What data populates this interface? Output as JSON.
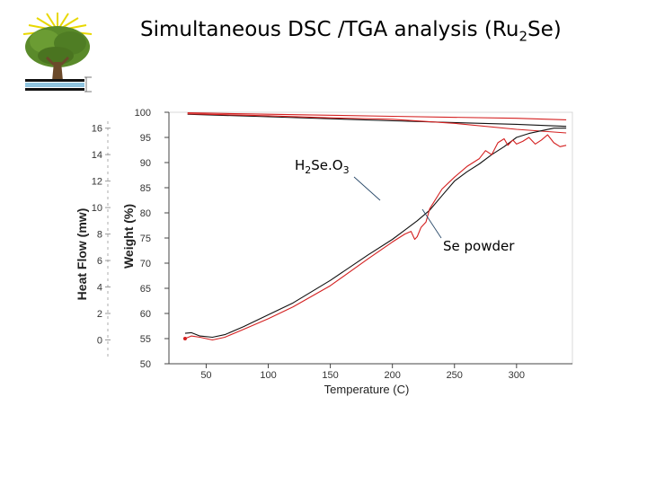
{
  "header": {
    "title_main": "Simultaneous DSC /TGA analysis (Ru",
    "title_sub": "2",
    "title_end": "Se)"
  },
  "logo": {
    "icon": "tree-logo-icon"
  },
  "colors": {
    "black_curve": "#111111",
    "red_curve": "#d42020",
    "axis": "#444444",
    "leader": "#2a4a6a"
  },
  "chart_data": {
    "type": "line",
    "title": "",
    "xlabel": "Temperature (C)",
    "ylabel_left": "Heat Flow (mw)",
    "ylabel_right": "Weight (%)",
    "xlim": [
      20,
      345
    ],
    "ylim_heatflow": [
      -1.8,
      17.2
    ],
    "ylim_weight": [
      50,
      100
    ],
    "x_ticks": [
      50,
      100,
      150,
      200,
      250,
      300
    ],
    "heatflow_ticks": [
      0,
      2,
      4,
      6,
      8,
      10,
      12,
      14,
      16
    ],
    "weight_ticks": [
      50,
      55,
      60,
      65,
      70,
      75,
      80,
      85,
      90,
      95,
      100
    ],
    "grid": false,
    "series": [
      {
        "axis": "weight",
        "color": "#111111",
        "x": [
          35,
          100,
          200,
          300,
          340
        ],
        "y": [
          99.6,
          99.1,
          98.3,
          97.6,
          97.2
        ]
      },
      {
        "axis": "weight",
        "color": "#d42020",
        "x": [
          35,
          100,
          150,
          200,
          250,
          300,
          340
        ],
        "y": [
          99.7,
          99.3,
          98.9,
          98.6,
          97.8,
          96.6,
          95.9
        ]
      },
      {
        "axis": "weight",
        "color": "#d42020",
        "x": [
          35,
          100,
          200,
          300,
          340
        ],
        "y": [
          99.9,
          99.6,
          99.2,
          98.8,
          98.5
        ]
      },
      {
        "axis": "heatflow",
        "color": "#111111",
        "x": [
          33,
          38,
          45,
          55,
          65,
          80,
          100,
          120,
          150,
          180,
          200,
          210,
          220,
          230,
          240,
          250,
          260,
          270,
          280,
          290,
          300,
          310,
          320,
          330,
          340
        ],
        "y": [
          0.5,
          0.55,
          0.3,
          0.2,
          0.4,
          1.0,
          1.9,
          2.8,
          4.5,
          6.4,
          7.6,
          8.3,
          9.0,
          9.8,
          10.9,
          12.0,
          12.7,
          13.3,
          14.0,
          14.6,
          15.3,
          15.6,
          15.8,
          16.0,
          16.0
        ]
      },
      {
        "axis": "heatflow",
        "color": "#d42020",
        "x": [
          33,
          38,
          45,
          55,
          65,
          80,
          100,
          120,
          150,
          180,
          200,
          210,
          215,
          218,
          220,
          223,
          227,
          230,
          240,
          250,
          260,
          270,
          275,
          280,
          285,
          290,
          293,
          297,
          300,
          305,
          310,
          315,
          320,
          325,
          330,
          335,
          340
        ],
        "y": [
          0.1,
          0.3,
          0.2,
          0.0,
          0.2,
          0.8,
          1.6,
          2.5,
          4.1,
          6.1,
          7.4,
          8.0,
          8.2,
          7.6,
          7.8,
          8.5,
          8.9,
          9.9,
          11.4,
          12.3,
          13.1,
          13.7,
          14.3,
          14.0,
          14.9,
          15.2,
          14.7,
          15.1,
          14.8,
          15.0,
          15.3,
          14.8,
          15.1,
          15.5,
          14.9,
          14.6,
          14.7
        ]
      }
    ],
    "annotations": [
      {
        "text_main": "H",
        "sub1": "2",
        "text_mid": "Se.O",
        "sub2": "3"
      },
      {
        "text": "Se powder"
      }
    ]
  }
}
